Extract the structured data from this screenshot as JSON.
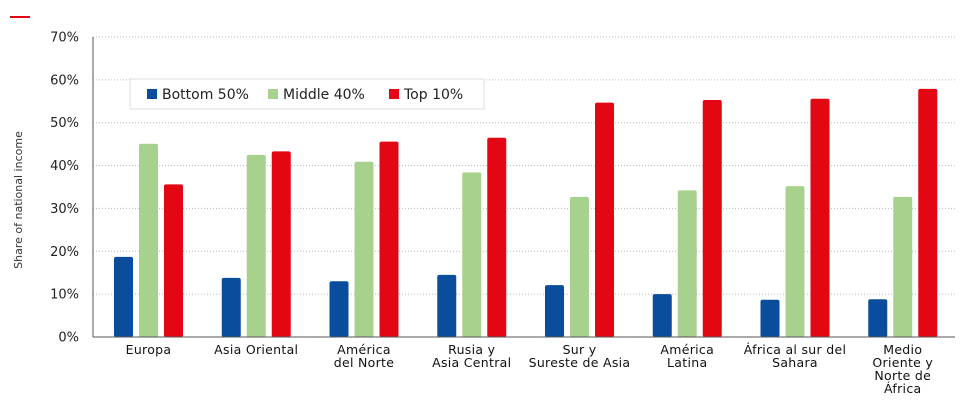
{
  "chart_data": {
    "type": "bar",
    "title": "",
    "xlabel": "",
    "ylabel": "Share of national income",
    "ylim": [
      0,
      70
    ],
    "yticks": [
      "0%",
      "10%",
      "20%",
      "30%",
      "40%",
      "50%",
      "60%",
      "70%"
    ],
    "grid": true,
    "legend_position": "top-left",
    "categories": [
      [
        "Europa"
      ],
      [
        "Asia Oriental"
      ],
      [
        "América",
        "del Norte"
      ],
      [
        "Rusia y",
        "Asia Central"
      ],
      [
        "Sur y",
        "Sureste de Asia"
      ],
      [
        "América",
        "Latina"
      ],
      [
        "África al sur del",
        "Sahara"
      ],
      [
        "Medio",
        "Oriente y",
        "Norte de",
        "África"
      ]
    ],
    "series": [
      {
        "name": "Bottom 50%",
        "color": "#0a4d9c",
        "values": [
          18.7,
          13.8,
          13.0,
          14.5,
          12.1,
          10.0,
          8.7,
          8.8
        ]
      },
      {
        "name": "Middle 40%",
        "color": "#a9d18e",
        "values": [
          45.1,
          42.5,
          40.9,
          38.4,
          32.7,
          34.2,
          35.2,
          32.7
        ]
      },
      {
        "name": "Top 10%",
        "color": "#e30613",
        "values": [
          35.6,
          43.3,
          45.6,
          46.5,
          54.7,
          55.3,
          55.6,
          57.9
        ]
      }
    ]
  },
  "accent": {
    "mark_color": "#e30613"
  }
}
